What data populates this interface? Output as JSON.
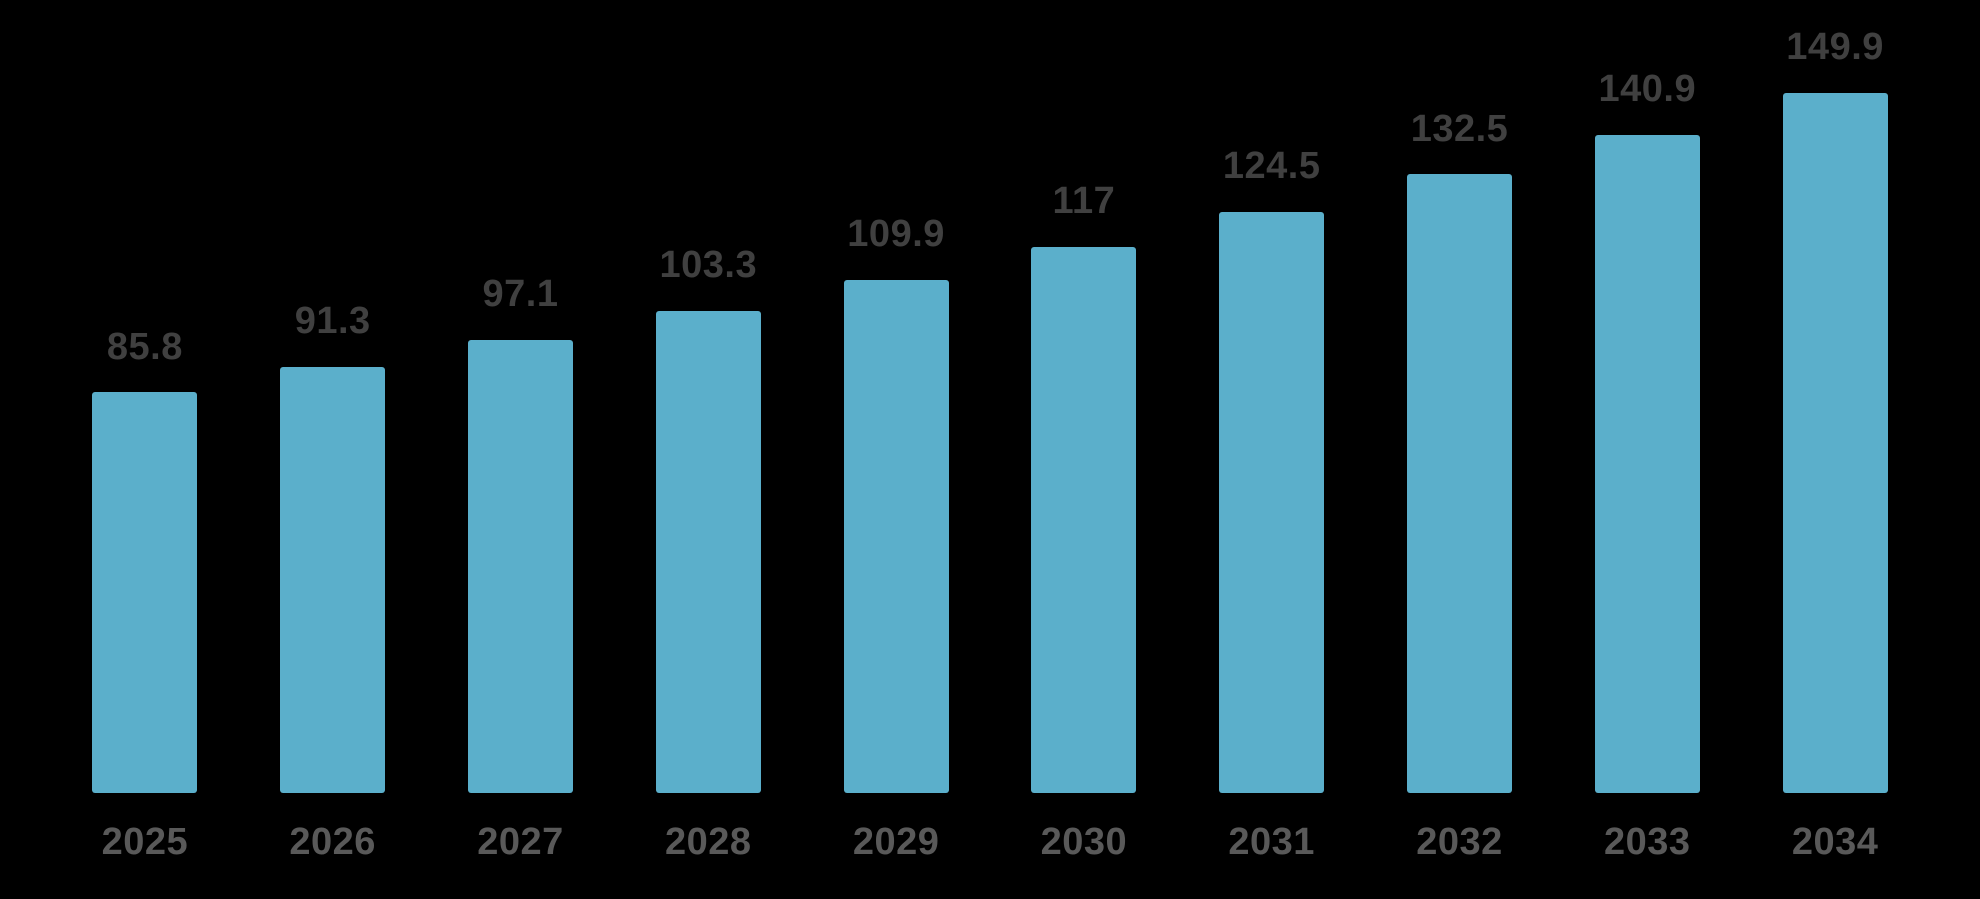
{
  "chart_data": {
    "type": "bar",
    "categories": [
      "2025",
      "2026",
      "2027",
      "2028",
      "2029",
      "2030",
      "2031",
      "2032",
      "2033",
      "2034"
    ],
    "values": [
      85.8,
      91.3,
      97.1,
      103.3,
      109.9,
      117,
      124.5,
      132.5,
      140.9,
      149.9
    ],
    "value_labels": [
      "85.8",
      "91.3",
      "97.1",
      "103.3",
      "109.9",
      "117",
      "124.5",
      "132.5",
      "140.9",
      "149.9"
    ],
    "title": "",
    "xlabel": "",
    "ylabel": "",
    "ylim": [
      0,
      149.9
    ],
    "grid": false,
    "legend": false,
    "colors": {
      "bar": "#5BAFCB",
      "value_label": "#404040",
      "axis_label": "#595959",
      "background": "#000000"
    }
  }
}
